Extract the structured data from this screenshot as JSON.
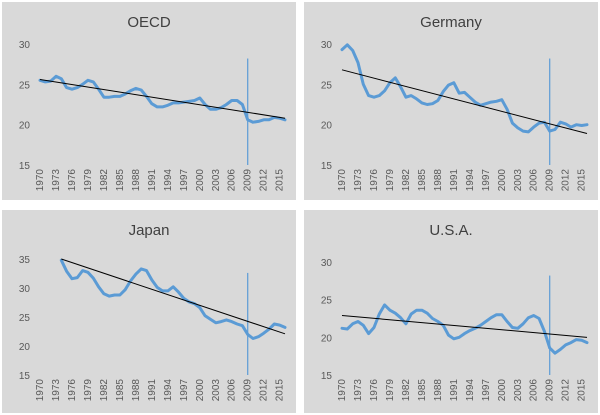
{
  "chart_data": [
    {
      "type": "line",
      "title": "OECD",
      "x": [
        1970,
        1971,
        1972,
        1973,
        1974,
        1975,
        1976,
        1977,
        1978,
        1979,
        1980,
        1981,
        1982,
        1983,
        1984,
        1985,
        1986,
        1987,
        1988,
        1989,
        1990,
        1991,
        1992,
        1993,
        1994,
        1995,
        1996,
        1997,
        1998,
        1999,
        2000,
        2001,
        2002,
        2003,
        2004,
        2005,
        2006,
        2007,
        2008,
        2009,
        2010,
        2011,
        2012,
        2013,
        2014,
        2015,
        2016
      ],
      "x_tick_labels": [
        "1970",
        "1973",
        "1976",
        "1979",
        "1982",
        "1985",
        "1988",
        "1991",
        "1994",
        "1997",
        "2000",
        "2003",
        "2006",
        "2009",
        "2012",
        "2015"
      ],
      "ylim": [
        15,
        30
      ],
      "y_ticks": [
        15,
        20,
        25,
        30
      ],
      "series": [
        {
          "values": [
            25.5,
            25.3,
            25.4,
            26.0,
            25.7,
            24.6,
            24.4,
            24.6,
            25.0,
            25.5,
            25.3,
            24.4,
            23.4,
            23.4,
            23.5,
            23.5,
            23.8,
            24.2,
            24.5,
            24.3,
            23.5,
            22.6,
            22.2,
            22.2,
            22.4,
            22.7,
            22.7,
            22.8,
            22.9,
            23.0,
            23.3,
            22.5,
            21.9,
            21.9,
            22.1,
            22.5,
            23.0,
            23.0,
            22.5,
            20.6,
            20.3,
            20.4,
            20.6,
            20.6,
            20.9,
            20.8,
            20.6
          ]
        }
      ],
      "trendline": {
        "start": 25.6,
        "end": 20.8
      },
      "vline_x": 2009
    },
    {
      "type": "line",
      "title": "Germany",
      "x": [
        1970,
        1971,
        1972,
        1973,
        1974,
        1975,
        1976,
        1977,
        1978,
        1979,
        1980,
        1981,
        1982,
        1983,
        1984,
        1985,
        1986,
        1987,
        1988,
        1989,
        1990,
        1991,
        1992,
        1993,
        1994,
        1995,
        1996,
        1997,
        1998,
        1999,
        2000,
        2001,
        2002,
        2003,
        2004,
        2005,
        2006,
        2007,
        2008,
        2009,
        2010,
        2011,
        2012,
        2013,
        2014,
        2015,
        2016
      ],
      "x_tick_labels": [
        "1970",
        "1973",
        "1976",
        "1979",
        "1982",
        "1985",
        "1988",
        "1991",
        "1994",
        "1997",
        "2000",
        "2003",
        "2006",
        "2009",
        "2012",
        "2015"
      ],
      "ylim": [
        15,
        30
      ],
      "y_ticks": [
        15,
        20,
        25,
        30
      ],
      "series": [
        {
          "values": [
            29.3,
            29.9,
            29.2,
            27.7,
            25.0,
            23.6,
            23.4,
            23.6,
            24.2,
            25.2,
            25.8,
            24.7,
            23.4,
            23.6,
            23.2,
            22.7,
            22.5,
            22.6,
            23.0,
            24.1,
            24.9,
            25.2,
            23.9,
            24.0,
            23.4,
            22.8,
            22.4,
            22.6,
            22.8,
            22.9,
            23.1,
            21.9,
            20.2,
            19.6,
            19.2,
            19.1,
            19.7,
            20.2,
            20.3,
            19.2,
            19.4,
            20.3,
            20.1,
            19.7,
            20.0,
            19.9,
            20.0
          ]
        }
      ],
      "trendline": {
        "start": 26.8,
        "end": 18.9
      },
      "vline_x": 2009
    },
    {
      "type": "line",
      "title": "Japan",
      "x": [
        1974,
        1975,
        1976,
        1977,
        1978,
        1979,
        1980,
        1981,
        1982,
        1983,
        1984,
        1985,
        1986,
        1987,
        1988,
        1989,
        1990,
        1991,
        1992,
        1993,
        1994,
        1995,
        1996,
        1997,
        1998,
        1999,
        2000,
        2001,
        2002,
        2003,
        2004,
        2005,
        2006,
        2007,
        2008,
        2009,
        2010,
        2011,
        2012,
        2013,
        2014,
        2015,
        2016
      ],
      "x_tick_labels": [
        "1970",
        "1973",
        "1976",
        "1979",
        "1982",
        "1985",
        "1988",
        "1991",
        "1994",
        "1997",
        "2000",
        "2003",
        "2006",
        "2009",
        "2012",
        "2015"
      ],
      "ylim": [
        15,
        35
      ],
      "y_ticks": [
        15,
        20,
        25,
        30,
        35
      ],
      "series": [
        {
          "values": [
            34.8,
            32.9,
            31.6,
            31.8,
            33.0,
            32.7,
            31.7,
            30.2,
            29.0,
            28.6,
            28.8,
            28.8,
            29.7,
            31.2,
            32.4,
            33.3,
            33.0,
            31.4,
            30.1,
            29.5,
            29.5,
            30.2,
            29.3,
            28.2,
            27.6,
            27.3,
            26.6,
            25.2,
            24.6,
            24.0,
            24.2,
            24.5,
            24.2,
            23.8,
            23.5,
            22.0,
            21.3,
            21.6,
            22.2,
            22.9,
            23.8,
            23.6,
            23.2
          ]
        }
      ],
      "trendline": {
        "start": 35.0,
        "end": 22.1
      },
      "vline_x": 2009
    },
    {
      "type": "line",
      "title": "U.S.A.",
      "x": [
        1970,
        1971,
        1972,
        1973,
        1974,
        1975,
        1976,
        1977,
        1978,
        1979,
        1980,
        1981,
        1982,
        1983,
        1984,
        1985,
        1986,
        1987,
        1988,
        1989,
        1990,
        1991,
        1992,
        1993,
        1994,
        1995,
        1996,
        1997,
        1998,
        1999,
        2000,
        2001,
        2002,
        2003,
        2004,
        2005,
        2006,
        2007,
        2008,
        2009,
        2010,
        2011,
        2012,
        2013,
        2014,
        2015,
        2016
      ],
      "x_tick_labels": [
        "1970",
        "1973",
        "1976",
        "1979",
        "1982",
        "1985",
        "1988",
        "1991",
        "1994",
        "1997",
        "2000",
        "2003",
        "2006",
        "2009",
        "2012",
        "2015"
      ],
      "ylim": [
        15,
        30
      ],
      "y_ticks": [
        15,
        20,
        25,
        30
      ],
      "series": [
        {
          "values": [
            21.2,
            21.1,
            21.8,
            22.1,
            21.6,
            20.5,
            21.3,
            23.1,
            24.3,
            23.6,
            23.2,
            22.6,
            21.8,
            23.1,
            23.6,
            23.6,
            23.2,
            22.5,
            22.1,
            21.6,
            20.3,
            19.8,
            20.0,
            20.5,
            20.9,
            21.2,
            21.6,
            22.1,
            22.6,
            23.0,
            23.0,
            22.1,
            21.3,
            21.2,
            21.8,
            22.6,
            22.9,
            22.5,
            20.8,
            18.6,
            17.9,
            18.4,
            19.0,
            19.3,
            19.7,
            19.6,
            19.3
          ]
        }
      ],
      "trendline": {
        "start": 22.9,
        "end": 20.0
      },
      "vline_x": 2009
    }
  ],
  "colors": {
    "panel_bg": "#d9d9d9",
    "series": "#5b9bd5",
    "trend": "#000000",
    "vline": "#5b9bd5",
    "axis_text": "#595959",
    "title_text": "#404040"
  }
}
